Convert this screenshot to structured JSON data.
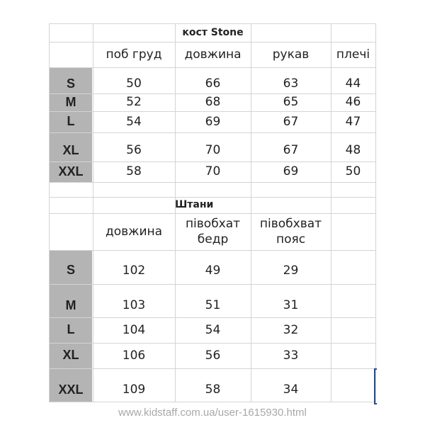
{
  "jacket": {
    "title": "кост Stone",
    "headers": [
      "поб груд",
      "довжина",
      "рукав",
      "плечі"
    ],
    "rows": [
      {
        "size": "S",
        "values": [
          "50",
          "66",
          "63",
          "44"
        ]
      },
      {
        "size": "M",
        "values": [
          "52",
          "68",
          "65",
          "46"
        ]
      },
      {
        "size": "L",
        "values": [
          "54",
          "69",
          "67",
          "47"
        ]
      },
      {
        "size": "XL",
        "values": [
          "56",
          "70",
          "67",
          "48"
        ]
      },
      {
        "size": "XXL",
        "values": [
          "58",
          "70",
          "69",
          "50"
        ]
      }
    ]
  },
  "pants": {
    "title": "Штани",
    "headers": [
      "довжина",
      "півобхат бедр",
      "півобхват пояс"
    ],
    "rows": [
      {
        "size": "S",
        "values": [
          "102",
          "49",
          "29"
        ]
      },
      {
        "size": "M",
        "values": [
          "103",
          "51",
          "31"
        ]
      },
      {
        "size": "L",
        "values": [
          "104",
          "54",
          "32"
        ]
      },
      {
        "size": "XL",
        "values": [
          "106",
          "56",
          "33"
        ]
      },
      {
        "size": "XXL",
        "values": [
          "109",
          "58",
          "34"
        ]
      }
    ]
  },
  "watermark": "www.kidstaff.com.ua/user-1615930.html",
  "colors": {
    "size_cell": "#b4b4b4",
    "grid": "#d4d4d4",
    "selection": "#1f4e9a"
  }
}
